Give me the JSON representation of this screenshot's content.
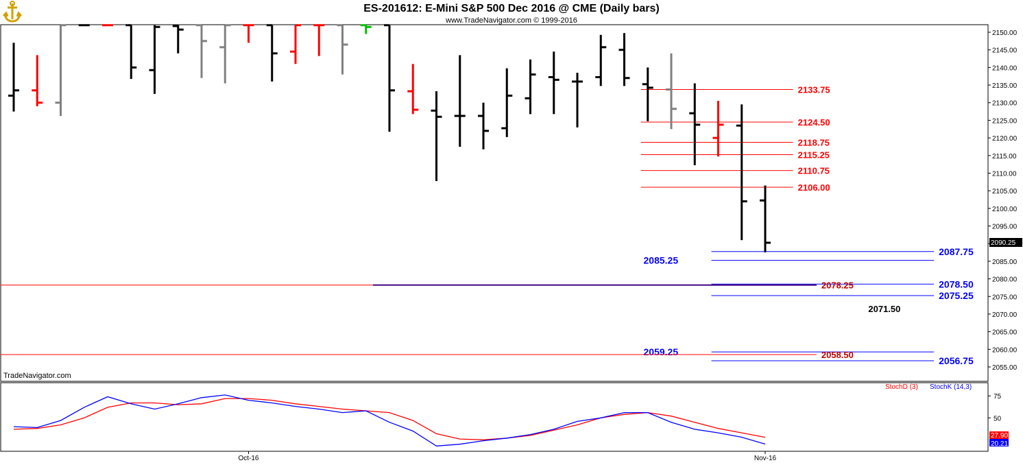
{
  "header": {
    "title": "ES-201612:  E-Mini S&P 500 Dec 2016 @ CME  (Daily bars)",
    "subtitle": "www.TradeNavigator.com © 1999-2016",
    "watermark": "TradeNavigator.com",
    "logo_icon": "anchor-icon"
  },
  "colors": {
    "up": "#000000",
    "down": "#ff0000",
    "neutral": "#808080",
    "blue": "#0000ff",
    "red": "#ff0000",
    "green": "#00c000"
  },
  "chart_data": [
    {
      "type": "ohlc",
      "ylim": [
        2050.5,
        2152.0
      ],
      "y_ticks": [
        "2150.00",
        "2145.00",
        "2140.00",
        "2135.00",
        "2130.00",
        "2125.00",
        "2120.00",
        "2115.00",
        "2110.00",
        "2105.00",
        "2100.00",
        "2095.00",
        "2090.00",
        "2085.00",
        "2080.00",
        "2075.00",
        "2070.00",
        "2065.00",
        "2060.00",
        "2055.00"
      ],
      "last_price": "2090.25",
      "x_labels": [
        {
          "label": "Oct-16",
          "bar": 10
        },
        {
          "label": "Nov-16",
          "bar": 32
        }
      ],
      "bars": [
        {
          "o": 2132.0,
          "h": 2147.0,
          "l": 2127.5,
          "c": 2133.5,
          "color": "up"
        },
        {
          "o": 2133.5,
          "h": 2143.5,
          "l": 2129.0,
          "c": 2130.0,
          "color": "down"
        },
        {
          "o": 2130.0,
          "h": 2152.0,
          "l": 2126.25,
          "c": 2152.0,
          "color": "neutral"
        },
        {
          "o": 2152.0,
          "h": 2152.0,
          "l": 2152.0,
          "c": 2152.0,
          "color": "up"
        },
        {
          "o": 2152.0,
          "h": 2152.0,
          "l": 2152.0,
          "c": 2152.0,
          "color": "down"
        },
        {
          "o": 2152.0,
          "h": 2152.0,
          "l": 2136.75,
          "c": 2140.0,
          "color": "up"
        },
        {
          "o": 2139.25,
          "h": 2152.0,
          "l": 2132.5,
          "c": 2151.5,
          "color": "up"
        },
        {
          "o": 2151.75,
          "h": 2152.0,
          "l": 2144.0,
          "c": 2150.75,
          "color": "up"
        },
        {
          "o": 2152.0,
          "h": 2152.0,
          "l": 2137.0,
          "c": 2147.5,
          "color": "neutral"
        },
        {
          "o": 2145.75,
          "h": 2152.0,
          "l": 2135.5,
          "c": 2152.0,
          "color": "neutral"
        },
        {
          "o": 2152.0,
          "h": 2152.0,
          "l": 2147.0,
          "c": 2152.0,
          "color": "down"
        },
        {
          "o": 2152.0,
          "h": 2152.0,
          "l": 2136.0,
          "c": 2144.0,
          "color": "up"
        },
        {
          "o": 2144.5,
          "h": 2152.0,
          "l": 2141.0,
          "c": 2152.0,
          "color": "down"
        },
        {
          "o": 2152.0,
          "h": 2152.0,
          "l": 2143.25,
          "c": 2152.0,
          "color": "down"
        },
        {
          "o": 2152.0,
          "h": 2152.0,
          "l": 2138.0,
          "c": 2146.5,
          "color": "neutral"
        },
        {
          "o": 2152.0,
          "h": 2152.0,
          "l": 2149.5,
          "c": 2151.5,
          "color": "green"
        },
        {
          "o": 2152.0,
          "h": 2152.0,
          "l": 2121.75,
          "c": 2133.5,
          "color": "up"
        },
        {
          "o": 2133.25,
          "h": 2141.0,
          "l": 2126.75,
          "c": 2128.0,
          "color": "down"
        },
        {
          "o": 2127.75,
          "h": 2133.25,
          "l": 2107.75,
          "c": 2126.0,
          "color": "up"
        },
        {
          "o": 2126.25,
          "h": 2143.5,
          "l": 2117.5,
          "c": 2126.25,
          "color": "up"
        },
        {
          "o": 2126.25,
          "h": 2130.0,
          "l": 2116.75,
          "c": 2122.0,
          "color": "up"
        },
        {
          "o": 2122.75,
          "h": 2139.75,
          "l": 2120.25,
          "c": 2132.0,
          "color": "up"
        },
        {
          "o": 2131.25,
          "h": 2142.25,
          "l": 2126.75,
          "c": 2138.0,
          "color": "up"
        },
        {
          "o": 2137.25,
          "h": 2144.5,
          "l": 2126.75,
          "c": 2136.5,
          "color": "up"
        },
        {
          "o": 2136.0,
          "h": 2138.5,
          "l": 2123.0,
          "c": 2136.0,
          "color": "up"
        },
        {
          "o": 2137.25,
          "h": 2149.25,
          "l": 2134.75,
          "c": 2145.75,
          "color": "up"
        },
        {
          "o": 2145.0,
          "h": 2149.75,
          "l": 2134.75,
          "c": 2137.0,
          "color": "up"
        },
        {
          "o": 2135.25,
          "h": 2140.0,
          "l": 2124.75,
          "c": 2134.25,
          "color": "up"
        },
        {
          "o": 2133.75,
          "h": 2144.0,
          "l": 2122.5,
          "c": 2128.25,
          "color": "neutral"
        },
        {
          "o": 2127.0,
          "h": 2135.5,
          "l": 2112.25,
          "c": 2123.75,
          "color": "up"
        },
        {
          "o": 2120.0,
          "h": 2130.5,
          "l": 2114.75,
          "c": 2123.75,
          "color": "down"
        },
        {
          "o": 2123.5,
          "h": 2129.5,
          "l": 2091.0,
          "c": 2102.0,
          "color": "up"
        },
        {
          "o": 2102.25,
          "h": 2106.5,
          "l": 2087.5,
          "c": 2090.25,
          "color": "up"
        }
      ],
      "levels": [
        {
          "price": 2133.75,
          "label": "2133.75",
          "color": "red",
          "from_bar": 27,
          "label_bar": 34.5
        },
        {
          "price": 2124.5,
          "label": "2124.50",
          "color": "red",
          "from_bar": 27,
          "label_bar": 34.5
        },
        {
          "price": 2118.75,
          "label": "2118.75",
          "color": "red",
          "from_bar": 27,
          "label_bar": 34.5
        },
        {
          "price": 2115.25,
          "label": "2115.25",
          "color": "red",
          "from_bar": 27,
          "label_bar": 34.5
        },
        {
          "price": 2110.75,
          "label": "2110.75",
          "color": "red",
          "from_bar": 27,
          "label_bar": 34.5
        },
        {
          "price": 2106.0,
          "label": "2106.00",
          "color": "red",
          "from_bar": 27,
          "label_bar": 34.5
        },
        {
          "price": 2087.75,
          "label": "2087.75",
          "color": "blue",
          "from_bar": 30,
          "label_bar": 40.5
        },
        {
          "price": 2085.25,
          "label": "2085.25",
          "color": "blue",
          "from_bar": 30,
          "label_bar": 28.5,
          "label_left": true
        },
        {
          "price": 2078.5,
          "label": "2078.50",
          "color": "blue",
          "from_bar": 30,
          "label_bar": 40.5
        },
        {
          "price": 2078.25,
          "label": "2078.25",
          "color": "red",
          "from_bar": -1,
          "label_bar": 35.5
        },
        {
          "price": 2075.25,
          "label": "2075.25",
          "color": "blue",
          "from_bar": 30,
          "label_bar": 40.5
        },
        {
          "price": 2071.5,
          "label": "2071.50",
          "color": "black",
          "from_bar": -1,
          "label_bar": 37.5
        },
        {
          "price": 2059.25,
          "label": "2059.25",
          "color": "blue",
          "from_bar": 30,
          "label_bar": 28.5,
          "label_left": true
        },
        {
          "price": 2058.5,
          "label": "2058.50",
          "color": "red",
          "from_bar": -1,
          "label_bar": 35.5
        },
        {
          "price": 2056.75,
          "label": "2056.75",
          "color": "blue",
          "from_bar": 30,
          "label_bar": 40.5
        }
      ]
    },
    {
      "type": "line",
      "name": "stochastic",
      "ylim": [
        12,
        90
      ],
      "y_ticks": [
        "75",
        "50"
      ],
      "legend": [
        "StochD (3)",
        "StochK (14,3)"
      ],
      "series": [
        {
          "name": "StochD (3)",
          "color": "red",
          "last": "27.90",
          "values": [
            37,
            38,
            42,
            50,
            62,
            67,
            67,
            65,
            66,
            72,
            72,
            70,
            66,
            63,
            60,
            58,
            56,
            47,
            32,
            26,
            25,
            27,
            30,
            36,
            42,
            50,
            54,
            56,
            52,
            45,
            38,
            33,
            27.9
          ]
        },
        {
          "name": "StochK (14,3)",
          "color": "blue",
          "last": "20.21",
          "values": [
            40,
            39,
            47,
            62,
            74,
            66,
            60,
            66,
            73,
            76,
            70,
            67,
            63,
            60,
            56,
            58,
            45,
            35,
            18,
            20,
            24,
            27,
            31,
            37,
            46,
            50,
            56,
            56,
            45,
            37,
            33,
            28,
            20.21
          ]
        }
      ]
    }
  ]
}
